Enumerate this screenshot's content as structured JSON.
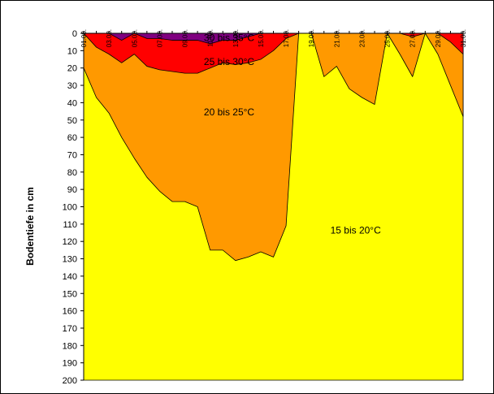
{
  "chart_data": {
    "type": "area",
    "title": "",
    "xlabel": "",
    "ylabel": "Bodentiefe in cm",
    "y_reversed": true,
    "ylim": [
      0,
      200
    ],
    "yticks": [
      0,
      10,
      20,
      30,
      40,
      50,
      60,
      70,
      80,
      90,
      100,
      110,
      120,
      130,
      140,
      150,
      160,
      170,
      180,
      190,
      200
    ],
    "x": [
      1,
      2,
      3,
      4,
      5,
      6,
      7,
      8,
      9,
      10,
      11,
      12,
      13,
      14,
      15,
      16,
      17,
      18,
      19,
      20,
      21,
      22,
      23,
      24,
      25,
      26,
      27,
      28,
      29,
      30,
      31
    ],
    "xticks": [
      {
        "x": 1,
        "label": "01.08."
      },
      {
        "x": 3,
        "label": "03.08."
      },
      {
        "x": 5,
        "label": "05.08."
      },
      {
        "x": 7,
        "label": "07.08."
      },
      {
        "x": 9,
        "label": "09.08."
      },
      {
        "x": 11,
        "label": "11.08."
      },
      {
        "x": 13,
        "label": "13.08."
      },
      {
        "x": 15,
        "label": "15.08."
      },
      {
        "x": 17,
        "label": "17.08."
      },
      {
        "x": 19,
        "label": "19.08."
      },
      {
        "x": 21,
        "label": "21.08."
      },
      {
        "x": 23,
        "label": "23.08."
      },
      {
        "x": 25,
        "label": "25.08."
      },
      {
        "x": 27,
        "label": "27.08."
      },
      {
        "x": 29,
        "label": "29.08."
      },
      {
        "x": 31,
        "label": "31.08."
      }
    ],
    "colors": {
      "15_20": "#FFFF00",
      "20_25": "#FF9900",
      "25_30": "#FF0000",
      "30_35": "#800080"
    },
    "series": [
      {
        "name": "30 bis 35°C",
        "color_key": "30_35",
        "depth_cm": [
          0,
          0,
          0,
          4,
          0,
          3,
          3,
          4,
          4,
          4,
          6,
          4,
          4,
          2,
          0,
          0,
          0,
          0,
          0,
          0,
          0,
          0,
          0,
          0,
          0,
          0,
          0,
          0,
          0,
          0,
          0
        ]
      },
      {
        "name": "25 bis 30°C",
        "color_key": "25_30",
        "depth_cm": [
          0,
          8,
          12,
          17,
          12,
          19,
          21,
          22,
          23,
          23,
          20,
          17,
          18,
          17,
          15,
          10,
          3,
          0,
          0,
          0,
          0,
          0,
          0,
          0,
          0,
          0,
          2,
          0,
          0,
          5,
          12
        ]
      },
      {
        "name": "20 bis 25°C",
        "color_key": "20_25",
        "depth_cm": [
          20,
          37,
          46,
          60,
          72,
          83,
          91,
          97,
          97,
          100,
          125,
          125,
          131,
          129,
          126,
          129,
          111,
          0,
          0,
          25,
          19,
          32,
          37,
          41,
          0,
          12,
          25,
          0,
          12,
          30,
          48
        ]
      },
      {
        "name": "15 bis 20°C",
        "color_key": "15_20",
        "depth_cm": [
          200,
          200,
          200,
          200,
          200,
          200,
          200,
          200,
          200,
          200,
          200,
          200,
          200,
          200,
          200,
          200,
          200,
          200,
          200,
          200,
          200,
          200,
          200,
          200,
          200,
          200,
          200,
          200,
          200,
          200,
          200
        ]
      }
    ],
    "labels": [
      {
        "text": "30 bis 35°C",
        "x": 12.5,
        "y": 2.5
      },
      {
        "text": "25 bis 30°C",
        "x": 12.5,
        "y": 16.5
      },
      {
        "text": "20 bis 25°C",
        "x": 12.5,
        "y": 45.5
      },
      {
        "text": "15 bis 20°C",
        "x": 22.5,
        "y": 113.5
      }
    ]
  }
}
